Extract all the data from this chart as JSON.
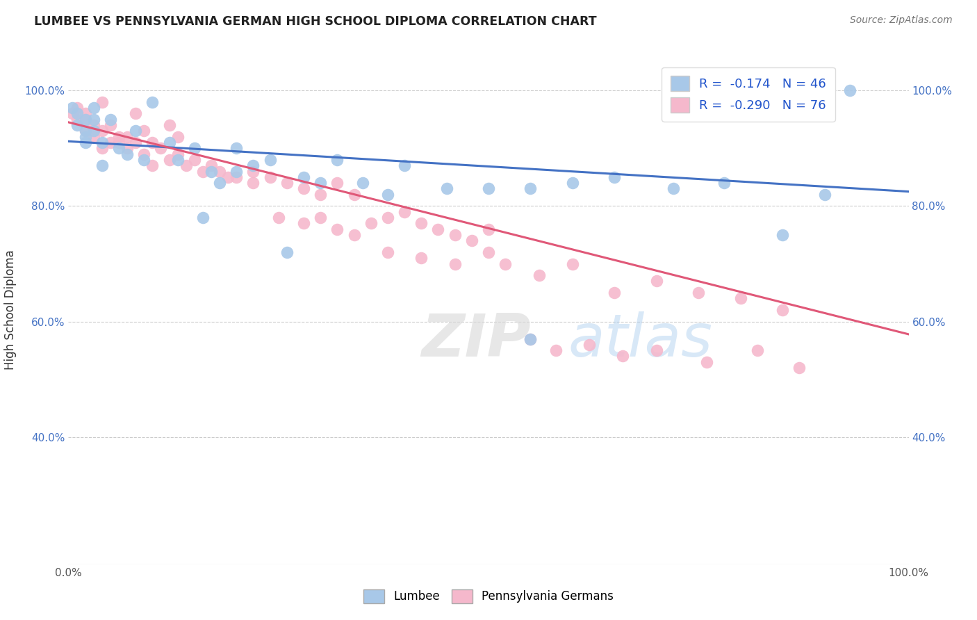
{
  "title": "LUMBEE VS PENNSYLVANIA GERMAN HIGH SCHOOL DIPLOMA CORRELATION CHART",
  "source_text": "Source: ZipAtlas.com",
  "ylabel": "High School Diploma",
  "xlim": [
    0.0,
    1.0
  ],
  "ylim": [
    0.18,
    1.06
  ],
  "y_ticks": [
    0.4,
    0.6,
    0.8,
    1.0
  ],
  "y_tick_labels": [
    "40.0%",
    "60.0%",
    "80.0%",
    "100.0%"
  ],
  "lumbee_R": -0.174,
  "lumbee_N": 46,
  "pg_R": -0.29,
  "pg_N": 76,
  "lumbee_color": "#a8c8e8",
  "pg_color": "#f5b8cc",
  "lumbee_line_color": "#4472c4",
  "pg_line_color": "#e05878",
  "background_color": "#ffffff",
  "lumbee_x": [
    0.005,
    0.01,
    0.01,
    0.02,
    0.02,
    0.02,
    0.02,
    0.03,
    0.03,
    0.03,
    0.04,
    0.04,
    0.05,
    0.06,
    0.07,
    0.08,
    0.09,
    0.1,
    0.12,
    0.13,
    0.15,
    0.17,
    0.18,
    0.2,
    0.22,
    0.24,
    0.16,
    0.2,
    0.28,
    0.3,
    0.32,
    0.35,
    0.38,
    0.4,
    0.5,
    0.55,
    0.6,
    0.65,
    0.72,
    0.78,
    0.85,
    0.9,
    0.45,
    0.55,
    0.93,
    0.26
  ],
  "lumbee_y": [
    0.97,
    0.96,
    0.94,
    0.95,
    0.93,
    0.92,
    0.91,
    0.97,
    0.95,
    0.93,
    0.91,
    0.87,
    0.95,
    0.9,
    0.89,
    0.93,
    0.88,
    0.98,
    0.91,
    0.88,
    0.9,
    0.86,
    0.84,
    0.9,
    0.87,
    0.88,
    0.78,
    0.86,
    0.85,
    0.84,
    0.88,
    0.84,
    0.82,
    0.87,
    0.83,
    0.83,
    0.84,
    0.85,
    0.83,
    0.84,
    0.75,
    0.82,
    0.83,
    0.57,
    1.0,
    0.72
  ],
  "pg_x": [
    0.005,
    0.01,
    0.01,
    0.02,
    0.02,
    0.02,
    0.03,
    0.03,
    0.04,
    0.05,
    0.05,
    0.06,
    0.07,
    0.08,
    0.09,
    0.1,
    0.1,
    0.11,
    0.12,
    0.13,
    0.14,
    0.15,
    0.16,
    0.17,
    0.18,
    0.19,
    0.2,
    0.22,
    0.13,
    0.09,
    0.07,
    0.06,
    0.04,
    0.22,
    0.24,
    0.26,
    0.28,
    0.3,
    0.32,
    0.34,
    0.25,
    0.28,
    0.3,
    0.32,
    0.34,
    0.36,
    0.38,
    0.4,
    0.42,
    0.44,
    0.46,
    0.48,
    0.5,
    0.38,
    0.42,
    0.46,
    0.5,
    0.52,
    0.56,
    0.6,
    0.65,
    0.7,
    0.75,
    0.8,
    0.85,
    0.04,
    0.08,
    0.12,
    0.55,
    0.58,
    0.62,
    0.66,
    0.7,
    0.76,
    0.82,
    0.87
  ],
  "pg_y": [
    0.96,
    0.97,
    0.95,
    0.95,
    0.93,
    0.96,
    0.94,
    0.92,
    0.93,
    0.94,
    0.91,
    0.92,
    0.9,
    0.91,
    0.89,
    0.91,
    0.87,
    0.9,
    0.88,
    0.89,
    0.87,
    0.88,
    0.86,
    0.87,
    0.86,
    0.85,
    0.85,
    0.84,
    0.92,
    0.93,
    0.92,
    0.91,
    0.9,
    0.86,
    0.85,
    0.84,
    0.83,
    0.82,
    0.84,
    0.82,
    0.78,
    0.77,
    0.78,
    0.76,
    0.75,
    0.77,
    0.78,
    0.79,
    0.77,
    0.76,
    0.75,
    0.74,
    0.76,
    0.72,
    0.71,
    0.7,
    0.72,
    0.7,
    0.68,
    0.7,
    0.65,
    0.67,
    0.65,
    0.64,
    0.62,
    0.98,
    0.96,
    0.94,
    0.57,
    0.55,
    0.56,
    0.54,
    0.55,
    0.53,
    0.55,
    0.52
  ],
  "lumbee_trend_y_start": 0.912,
  "lumbee_trend_y_end": 0.825,
  "pg_trend_y_start": 0.945,
  "pg_trend_y_end": 0.578
}
